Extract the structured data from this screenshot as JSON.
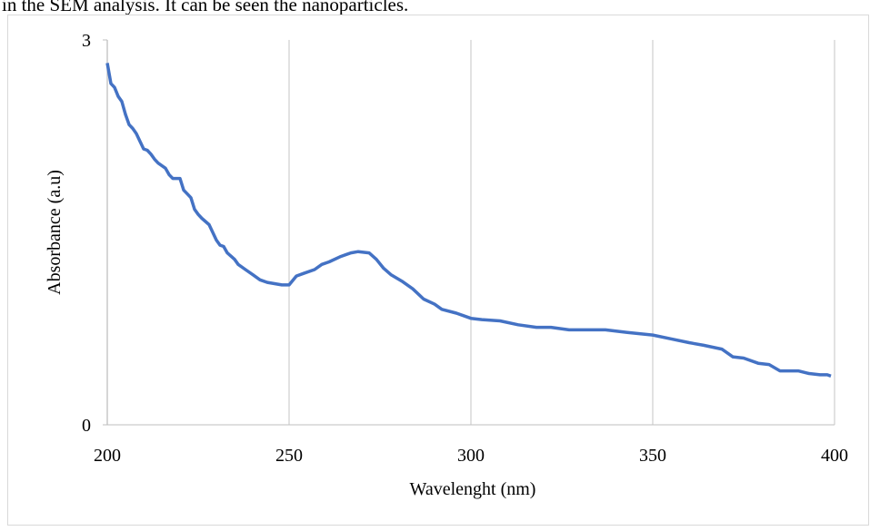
{
  "document_text": "in the SEM analysis. It can be seen      the nanoparticles.",
  "chart_data": {
    "type": "line",
    "xlabel": "Wavelenght (nm)",
    "ylabel": "Absorbance (a.u)",
    "xlim": [
      200,
      400
    ],
    "xticks": [
      200,
      250,
      300,
      350,
      400
    ],
    "ylim": [
      0,
      3
    ],
    "yticks": [
      0,
      3
    ],
    "grid": "x",
    "series": [
      {
        "color": "#4472c4",
        "x": [
          200,
          201,
          202,
          203,
          204,
          205,
          206,
          207,
          208,
          209,
          210,
          211,
          212,
          213,
          214,
          216,
          217,
          218,
          219,
          220,
          221,
          222,
          223,
          224,
          225,
          226,
          228,
          229,
          230,
          231,
          232,
          233,
          235,
          236,
          238,
          240,
          242,
          244,
          246,
          248,
          250,
          252,
          254,
          257,
          259,
          261,
          264,
          267,
          269,
          272,
          274,
          276,
          278,
          281,
          284,
          287,
          290,
          292,
          296,
          300,
          303,
          308,
          313,
          318,
          322,
          327,
          337,
          343,
          350,
          355,
          360,
          364,
          369,
          372,
          375,
          379,
          382,
          385,
          390,
          393,
          396,
          398,
          399
        ],
        "values": [
          2.82,
          2.66,
          2.63,
          2.56,
          2.52,
          2.42,
          2.34,
          2.31,
          2.27,
          2.21,
          2.15,
          2.14,
          2.11,
          2.07,
          2.04,
          2.0,
          1.95,
          1.92,
          1.92,
          1.92,
          1.83,
          1.8,
          1.77,
          1.68,
          1.64,
          1.61,
          1.56,
          1.5,
          1.44,
          1.4,
          1.39,
          1.34,
          1.29,
          1.25,
          1.21,
          1.17,
          1.13,
          1.11,
          1.1,
          1.09,
          1.09,
          1.16,
          1.18,
          1.21,
          1.25,
          1.27,
          1.31,
          1.34,
          1.35,
          1.34,
          1.29,
          1.22,
          1.17,
          1.12,
          1.06,
          0.98,
          0.94,
          0.9,
          0.87,
          0.83,
          0.82,
          0.81,
          0.78,
          0.76,
          0.76,
          0.74,
          0.74,
          0.72,
          0.7,
          0.67,
          0.64,
          0.62,
          0.59,
          0.53,
          0.52,
          0.48,
          0.47,
          0.42,
          0.42,
          0.4,
          0.39,
          0.39,
          0.38
        ]
      }
    ]
  }
}
